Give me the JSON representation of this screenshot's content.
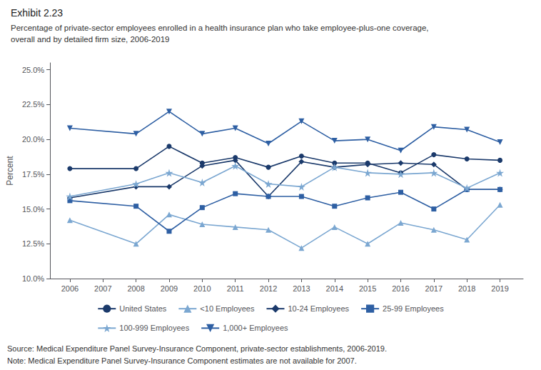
{
  "chart_data": {
    "type": "line",
    "title": "Exhibit 2.23",
    "subtitle": "Percentage of private-sector employees enrolled in a health insurance plan who take employee-plus-one coverage,\noverall and by detailed firm size, 2006-2019",
    "annotations": [
      "Source: Medical Expenditure Panel Survey-Insurance Component, private-sector establishments, 2006-2019.",
      "Note: Medical Expenditure Panel Survey-Insurance Component estimates are not available for 2007."
    ],
    "ylabel": "Percent",
    "x": [
      2006,
      2008,
      2009,
      2010,
      2011,
      2012,
      2013,
      2014,
      2015,
      2016,
      2017,
      2018,
      2019
    ],
    "series": [
      {
        "name": "United States",
        "color": "#1B3A6B",
        "marker": "circle",
        "values": [
          17.9,
          17.9,
          19.5,
          18.3,
          18.7,
          18.0,
          18.8,
          18.3,
          18.3,
          17.6,
          18.9,
          18.6,
          18.5
        ]
      },
      {
        "name": "<10 Employees",
        "color": "#7BA7D1",
        "marker": "triangle",
        "values": [
          14.2,
          12.5,
          14.6,
          13.9,
          13.7,
          13.5,
          12.2,
          13.7,
          12.5,
          14.0,
          13.5,
          12.8,
          15.3
        ]
      },
      {
        "name": "10-24 Employees",
        "color": "#1B3A6B",
        "marker": "diamond",
        "values": [
          15.8,
          16.6,
          16.6,
          18.1,
          18.5,
          15.9,
          18.4,
          18.0,
          18.2,
          18.3,
          18.2,
          16.4,
          16.4
        ]
      },
      {
        "name": "25-99 Employees",
        "color": "#2E5FA3",
        "marker": "square",
        "values": [
          15.6,
          15.2,
          13.4,
          15.1,
          16.1,
          15.9,
          15.9,
          15.2,
          15.8,
          16.2,
          15.0,
          16.4,
          16.4
        ]
      },
      {
        "name": "100-999 Employees",
        "color": "#7BA7D1",
        "marker": "star",
        "values": [
          15.9,
          16.8,
          17.6,
          16.9,
          18.1,
          16.8,
          16.6,
          18.0,
          17.6,
          17.5,
          17.6,
          16.5,
          17.6
        ]
      },
      {
        "name": "1,000+ Employees",
        "color": "#2E5FA3",
        "marker": "triangle-down",
        "values": [
          20.8,
          20.4,
          22.0,
          20.4,
          20.8,
          19.7,
          21.3,
          19.9,
          20.0,
          19.2,
          20.9,
          20.7,
          19.8
        ]
      }
    ],
    "xlim": [
      2005.4,
      2019.7
    ],
    "xticks": [
      2006,
      2007,
      2008,
      2009,
      2010,
      2011,
      2012,
      2013,
      2014,
      2015,
      2016,
      2017,
      2018,
      2019
    ],
    "ylim": [
      10.0,
      25.5
    ],
    "yticks": [
      {
        "value": 10.0,
        "label": "10.0%"
      },
      {
        "value": 12.5,
        "label": "12.5%"
      },
      {
        "value": 15.0,
        "label": "15.0%"
      },
      {
        "value": 17.5,
        "label": "17.5%"
      },
      {
        "value": 20.0,
        "label": "20.0%"
      },
      {
        "value": 22.5,
        "label": "22.5%"
      },
      {
        "value": 25.0,
        "label": "25.0%"
      }
    ],
    "grid": false,
    "legend": "bottom"
  }
}
